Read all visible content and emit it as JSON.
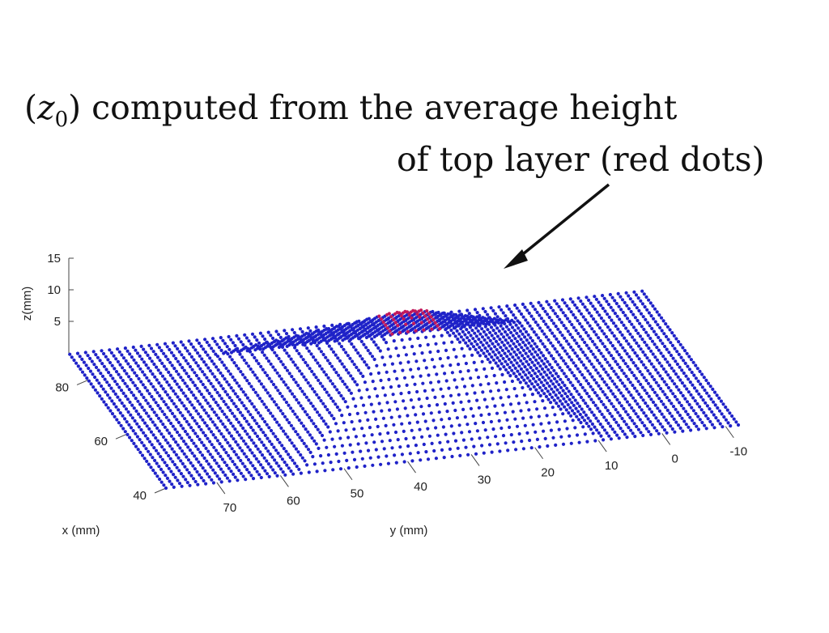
{
  "annotation": {
    "line1_paren_open": "(",
    "line1_symbol": "z",
    "line1_subscript": "0",
    "line1_rest": ") computed from the average height",
    "line2": "of top layer (red dots)"
  },
  "chart_data": {
    "type": "scatter",
    "title": "",
    "xlabel": "x (mm)",
    "ylabel": "y (mm)",
    "zlabel": "z(mm)",
    "x_ticks": [
      40,
      60,
      80
    ],
    "y_ticks": [
      70,
      60,
      50,
      40,
      30,
      20,
      10,
      0,
      -10
    ],
    "z_ticks": [
      5,
      10,
      15
    ],
    "xlim": [
      35,
      92
    ],
    "ylim": [
      -12,
      78
    ],
    "zlim": [
      0,
      15
    ],
    "series": [
      {
        "color": "#1f22c8",
        "description_key": "surface"
      },
      {
        "color": "#c2185b",
        "description_key": "top_layer"
      }
    ],
    "surface": {
      "base_z": 0,
      "pile_center_x": 62,
      "pile_center_y": 33,
      "pile_peak_z": 14
    }
  }
}
